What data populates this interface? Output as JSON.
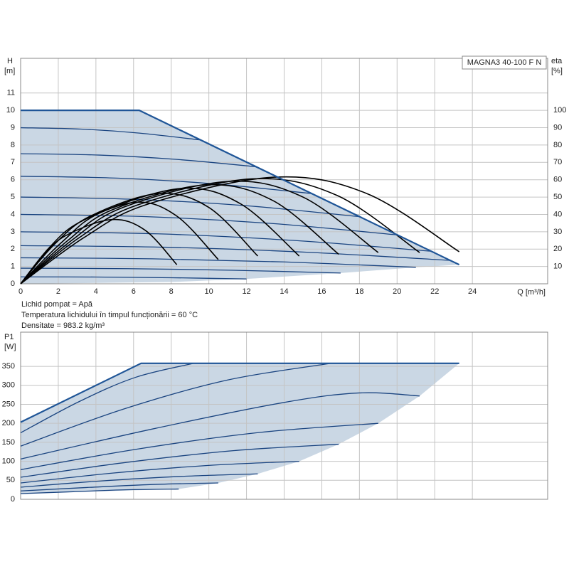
{
  "chart_data": [
    {
      "type": "line",
      "model": "MAGNA3 40-100 F N",
      "ylabel": "H",
      "yunit": "[m]",
      "y2label": "eta",
      "y2unit": "[%]",
      "xlabel": "Q [m³/h]",
      "notes": [
        "Lichid pompat = Apă",
        "Temperatura lichidului în timpul funcționării = 60 °C",
        "Densitate = 983.2 kg/m³"
      ],
      "grid": true,
      "xlim": [
        0,
        28
      ],
      "ylim": [
        0,
        13
      ],
      "y2lim": [
        0,
        130
      ],
      "xticks": [
        0,
        2,
        4,
        6,
        8,
        10,
        12,
        14,
        16,
        18,
        20,
        22,
        24
      ],
      "yticks": [
        0,
        1,
        2,
        3,
        4,
        5,
        6,
        7,
        8,
        9,
        10,
        11
      ],
      "y2ticks": [
        10,
        20,
        30,
        40,
        50,
        60,
        70,
        80,
        90,
        100
      ],
      "region": {
        "color": "#cad7e4",
        "x": [
          0,
          6.3,
          23.3,
          21,
          17,
          12,
          8,
          0
        ],
        "values": [
          10,
          10,
          1.1,
          0.95,
          0.62,
          0.28,
          0.1,
          0
        ]
      },
      "max_curve": {
        "color": "#1f5597",
        "x": [
          0,
          6.3,
          23.3
        ],
        "values": [
          10,
          10,
          1.1
        ]
      },
      "series": [
        {
          "color": "#1a4480",
          "x": [
            0,
            3.2,
            6.3,
            9.5
          ],
          "values": [
            9,
            8.92,
            8.69,
            8.3
          ]
        },
        {
          "color": "#1a4480",
          "x": [
            0,
            4.2,
            8.3,
            12.5
          ],
          "values": [
            7.5,
            7.42,
            7.17,
            6.75
          ]
        },
        {
          "color": "#1a4480",
          "x": [
            0,
            5.2,
            10.3,
            15.5
          ],
          "values": [
            6.2,
            6.09,
            5.76,
            5.2
          ]
        },
        {
          "color": "#1a4480",
          "x": [
            0,
            6,
            12,
            18
          ],
          "values": [
            5,
            4.87,
            4.5,
            3.87
          ]
        },
        {
          "color": "#1a4480",
          "x": [
            0,
            6.7,
            13.3,
            20
          ],
          "values": [
            4,
            3.87,
            3.48,
            2.82
          ]
        },
        {
          "color": "#1a4480",
          "x": [
            0,
            7.3,
            14.5,
            21.8
          ],
          "values": [
            3,
            2.88,
            2.5,
            1.88
          ]
        },
        {
          "color": "#1a4480",
          "x": [
            0,
            7.6,
            15.2,
            22.8
          ],
          "values": [
            2.2,
            2.11,
            1.82,
            1.35
          ]
        },
        {
          "color": "#1a4480",
          "x": [
            0,
            7,
            14,
            21
          ],
          "values": [
            1.5,
            1.44,
            1.26,
            0.95
          ]
        },
        {
          "color": "#1a4480",
          "x": [
            0,
            5.7,
            11.3,
            17
          ],
          "values": [
            0.9,
            0.87,
            0.78,
            0.62
          ]
        },
        {
          "color": "#1a4480",
          "x": [
            0,
            4,
            8,
            12
          ],
          "values": [
            0.4,
            0.39,
            0.35,
            0.28
          ]
        },
        {
          "color": "#000000",
          "axis": "y2",
          "x": [
            0,
            3.4,
            6.8,
            13.5,
            18.4,
            23.3
          ],
          "values": [
            0,
            26.9,
            46.1,
            61.5,
            52,
            18.5
          ]
        },
        {
          "color": "#000000",
          "axis": "y2",
          "x": [
            0,
            3.1,
            6.2,
            12.3,
            16.8,
            21.2
          ],
          "values": [
            0,
            26.5,
            45.4,
            60.5,
            51,
            18
          ]
        },
        {
          "color": "#000000",
          "axis": "y2",
          "x": [
            0,
            2.8,
            5.5,
            11,
            15,
            19
          ],
          "values": [
            0,
            25.8,
            44.3,
            59,
            50,
            18
          ]
        },
        {
          "color": "#000000",
          "axis": "y2",
          "x": [
            0,
            2.5,
            4.9,
            9.8,
            13.4,
            16.9
          ],
          "values": [
            0,
            24.9,
            42.8,
            57,
            48,
            17
          ]
        },
        {
          "color": "#000000",
          "axis": "y2",
          "x": [
            0,
            2.2,
            4.3,
            8.6,
            11.7,
            14.8
          ],
          "values": [
            0,
            24.1,
            41.3,
            55,
            46,
            16
          ]
        },
        {
          "color": "#000000",
          "axis": "y2",
          "x": [
            0,
            1.8,
            3.7,
            7.3,
            10,
            12.6
          ],
          "values": [
            0,
            22.8,
            39,
            52,
            44,
            16
          ]
        },
        {
          "color": "#000000",
          "axis": "y2",
          "x": [
            0,
            1.5,
            3.1,
            6.1,
            8.3,
            10.5
          ],
          "values": [
            0,
            20.6,
            35.3,
            47,
            39,
            14
          ]
        },
        {
          "color": "#000000",
          "axis": "y2",
          "x": [
            0,
            1.2,
            2.4,
            4.8,
            6.6,
            8.3
          ],
          "values": [
            0,
            16.2,
            27.8,
            37,
            31,
            11
          ]
        }
      ]
    },
    {
      "type": "line",
      "ylabel": "P1",
      "yunit": "[W]",
      "grid": true,
      "ylim": [
        0,
        440
      ],
      "yticks": [
        0,
        50,
        100,
        150,
        200,
        250,
        300,
        350
      ],
      "region": {
        "color": "#cad7e4",
        "x": [
          0,
          6.4,
          23.3,
          21.2,
          19,
          16.9,
          14.8,
          12.6,
          10.5,
          8.4,
          0
        ],
        "values": [
          203,
          358,
          358,
          272,
          200,
          145,
          100,
          67,
          43,
          27,
          15
        ]
      },
      "max_curve": {
        "color": "#1f5597",
        "x": [
          0,
          6.4,
          23.3
        ],
        "values": [
          203,
          358,
          358
        ]
      },
      "series": [
        {
          "color": "#1a4480",
          "x": [
            0,
            3.1,
            6.1,
            9.2
          ],
          "values": [
            175,
            257,
            321,
            358
          ]
        },
        {
          "color": "#1a4480",
          "x": [
            0,
            5.5,
            11,
            16.5
          ],
          "values": [
            140,
            238,
            314,
            358
          ]
        },
        {
          "color": "#1a4480",
          "x": [
            0,
            7,
            14,
            18,
            21.2
          ],
          "values": [
            106,
            185,
            255,
            280,
            272
          ]
        },
        {
          "color": "#1a4480",
          "x": [
            0,
            6.3,
            12.7,
            19
          ],
          "values": [
            78,
            133,
            176,
            200
          ]
        },
        {
          "color": "#1a4480",
          "x": [
            0,
            5.6,
            11.3,
            16.9
          ],
          "values": [
            58,
            97,
            128,
            145
          ]
        },
        {
          "color": "#1a4480",
          "x": [
            0,
            4.9,
            9.9,
            14.8
          ],
          "values": [
            43,
            69,
            89,
            100
          ]
        },
        {
          "color": "#1a4480",
          "x": [
            0,
            4.2,
            8.4,
            12.6
          ],
          "values": [
            32,
            48,
            60,
            67
          ]
        },
        {
          "color": "#1a4480",
          "x": [
            0,
            3.5,
            7,
            10.5
          ],
          "values": [
            22,
            31,
            39,
            43
          ]
        },
        {
          "color": "#1a4480",
          "x": [
            0,
            2.8,
            5.6,
            8.4
          ],
          "values": [
            15,
            20,
            25,
            27
          ]
        }
      ]
    }
  ]
}
